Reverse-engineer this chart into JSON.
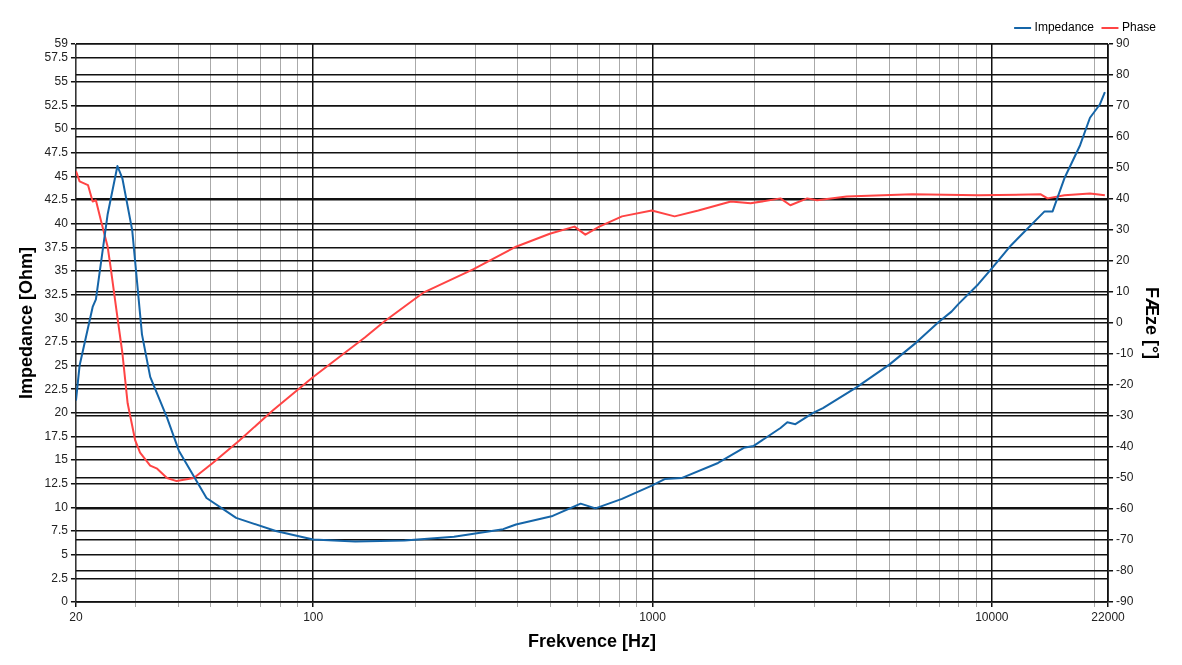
{
  "chart_data": {
    "type": "line",
    "xlabel": "Frekvence [Hz]",
    "ylabel": "Impedance [Ohm]",
    "y2label": "FÆze [°]",
    "log": "x",
    "grid": true,
    "legend": "top right",
    "marker": "none",
    "line_style": "solid",
    "xlim": [
      20,
      22000
    ],
    "xticks": [
      20,
      {
        "value": 30,
        "label": null
      },
      {
        "value": 40,
        "label": null
      },
      {
        "value": 50,
        "label": null
      },
      {
        "value": 60,
        "label": null
      },
      {
        "value": 70,
        "label": null
      },
      {
        "value": 80,
        "label": null
      },
      {
        "value": 90,
        "label": null
      },
      100,
      {
        "value": 200,
        "label": null
      },
      {
        "value": 300,
        "label": null
      },
      {
        "value": 400,
        "label": null
      },
      {
        "value": 500,
        "label": null
      },
      {
        "value": 600,
        "label": null
      },
      {
        "value": 700,
        "label": null
      },
      {
        "value": 800,
        "label": null
      },
      {
        "value": 900,
        "label": null
      },
      1000,
      {
        "value": 2000,
        "label": null
      },
      {
        "value": 3000,
        "label": null
      },
      {
        "value": 4000,
        "label": null
      },
      {
        "value": 5000,
        "label": null
      },
      {
        "value": 6000,
        "label": null
      },
      {
        "value": 7000,
        "label": null
      },
      {
        "value": 8000,
        "label": null
      },
      {
        "value": 9000,
        "label": null
      },
      10000,
      {
        "value": 20000,
        "label": null
      },
      22000
    ],
    "ylim": [
      0,
      59
    ],
    "yticks": [
      0,
      2.5,
      5,
      7.5,
      10,
      12.5,
      15,
      17.5,
      20,
      22.5,
      25,
      27.5,
      30,
      32.5,
      35,
      37.5,
      40,
      42.5,
      45,
      47.5,
      50,
      52.5,
      55,
      57.5,
      59
    ],
    "y2lim": [
      -90,
      90
    ],
    "y2ticks": [
      -90,
      -80,
      -70,
      -60,
      -50,
      -40,
      -30,
      -20,
      -10,
      0,
      10,
      20,
      30,
      40,
      50,
      60,
      70,
      80,
      90
    ],
    "series": [
      {
        "name": "Impedance",
        "color": "#1565a8",
        "x": [
          20,
          20.5,
          22.4,
          22.9,
          24.8,
          26.5,
          27.4,
          29.3,
          31.3,
          33.1,
          37.1,
          40.2,
          48.5,
          59.3,
          77.6,
          100,
          133,
          186,
          260,
          363,
          396,
          508,
          614,
          679,
          813,
          995,
          1086,
          1217,
          1560,
          1858,
          1987,
          2383,
          2496,
          2637,
          2973,
          3179,
          3990,
          4987,
          5973,
          6970,
          7605,
          7965,
          9120,
          9955,
          11380,
          14300,
          15100,
          16360,
          18200,
          19460,
          20800,
          21530
        ],
        "values": [
          21.3,
          25,
          31.2,
          32,
          41,
          46.1,
          44.8,
          39.3,
          28.3,
          23.8,
          19.5,
          16,
          11,
          8.9,
          7.5,
          6.6,
          6.4,
          6.5,
          6.9,
          7.7,
          8.2,
          9.1,
          10.4,
          9.9,
          10.9,
          12.3,
          13,
          13.1,
          14.7,
          16.3,
          16.5,
          18.4,
          19,
          18.8,
          20,
          20.5,
          22.7,
          25.1,
          27.4,
          29.6,
          30.7,
          31.5,
          33.6,
          35.2,
          37.7,
          41.3,
          41.3,
          44.8,
          48.3,
          51.2,
          52.6,
          53.9
        ]
      },
      {
        "name": "Phase",
        "color": "#ff4444",
        "axis": "y2",
        "x": [
          20,
          20.5,
          21.7,
          22.4,
          22.9,
          23.7,
          24.8,
          25.3,
          26.5,
          27.4,
          28.4,
          29.9,
          30.9,
          33.1,
          34.7,
          37.1,
          39.6,
          44.5,
          50.8,
          60.5,
          76,
          100,
          142,
          162,
          212,
          297,
          396,
          498,
          589,
          634,
          697,
          813,
          995,
          1162,
          1365,
          1702,
          1946,
          2383,
          2548,
          2857,
          3055,
          3734,
          5824,
          9120,
          13940,
          14590,
          16360,
          19460,
          21530
        ],
        "values": [
          49,
          45.7,
          44.5,
          39.2,
          39.6,
          33,
          24.6,
          18,
          1.8,
          -9.6,
          -25.9,
          -37.9,
          -41.8,
          -46,
          -47,
          -50,
          -51,
          -50,
          -45,
          -38,
          -28.2,
          -17.4,
          -4.7,
          0.5,
          9.9,
          17.4,
          24.6,
          28.8,
          31.1,
          28.5,
          31.1,
          34.4,
          36.3,
          34.4,
          36.3,
          39.2,
          38.6,
          40.2,
          38,
          40.2,
          39.6,
          40.8,
          41.5,
          41.2,
          41.5,
          40.2,
          41.2,
          41.8,
          41.2
        ]
      }
    ]
  }
}
